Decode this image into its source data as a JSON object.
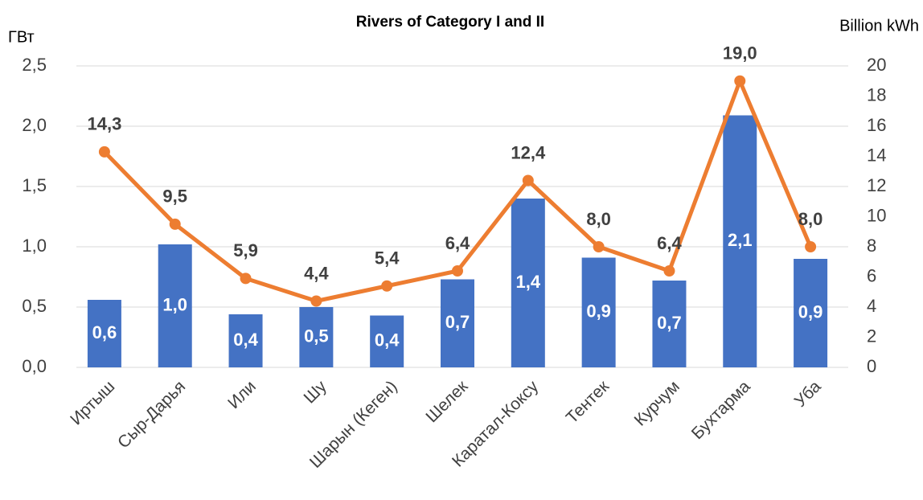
{
  "chart_data": {
    "type": "bar",
    "title": "Rivers of Category I and II",
    "y_label": "ГВт",
    "y2_label": "Billion kWh",
    "categories": [
      "Иртыш",
      "Сыр-Дарья",
      "Или",
      "Шу",
      "Шарын (Кеген)",
      "Шелек",
      "Каратал-Коксу",
      "Тентек",
      "Курчум",
      "Бухтарма",
      "Уба"
    ],
    "series": [
      {
        "type": "bar",
        "color": "#4472c4",
        "values": [
          0.56,
          1.02,
          0.44,
          0.5,
          0.43,
          0.73,
          1.4,
          0.91,
          0.72,
          2.09,
          0.9
        ],
        "value_labels": [
          "0,6",
          "1,0",
          "0,4",
          "0,5",
          "0,4",
          "0,7",
          "1,4",
          "0,9",
          "0,7",
          "2,1",
          "0,9"
        ]
      },
      {
        "type": "line",
        "color": "#ed7d31",
        "axis": "y2",
        "values": [
          14.3,
          9.5,
          5.9,
          4.4,
          5.4,
          6.4,
          12.4,
          8.0,
          6.4,
          19.0,
          8.0
        ],
        "value_labels": [
          "14,3",
          "9,5",
          "5,9",
          "4,4",
          "5,4",
          "6,4",
          "12,4",
          "8,0",
          "6,4",
          "19,0",
          "8,0"
        ]
      }
    ],
    "ylim": [
      0,
      2.5
    ],
    "yticks": [
      {
        "value": 0,
        "label": "0,0"
      },
      {
        "value": 0.5,
        "label": "0,5"
      },
      {
        "value": 1,
        "label": "1,0"
      },
      {
        "value": 1.5,
        "label": "1,5"
      },
      {
        "value": 2,
        "label": "2,0"
      },
      {
        "value": 2.5,
        "label": "2,5"
      }
    ],
    "y2lim": [
      0,
      20
    ],
    "y2ticks": [
      0,
      2,
      4,
      6,
      8,
      10,
      12,
      14,
      16,
      18,
      20
    ],
    "grid": true
  }
}
